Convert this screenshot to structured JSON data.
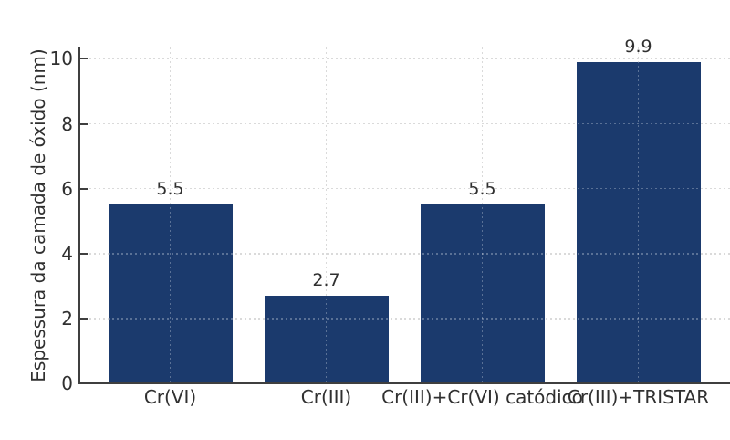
{
  "chart_data": {
    "type": "bar",
    "categories": [
      "Cr(VI)",
      "Cr(III)",
      "Cr(III)+Cr(VI) catódico",
      "Cr(III)+TRISTAR"
    ],
    "values": [
      5.5,
      2.7,
      5.5,
      9.9
    ],
    "bar_labels": [
      "5.5",
      "2.7",
      "5.5",
      "9.9"
    ],
    "title": "",
    "xlabel": "",
    "ylabel": "Espessura da camada de óxido (nm)",
    "yticks": [
      0,
      2,
      4,
      6,
      8,
      10
    ],
    "ytick_labels": [
      "0",
      "2",
      "4",
      "6",
      "8",
      "10"
    ],
    "ylim": [
      0,
      10.35
    ],
    "grid": true,
    "grid_style": "dotted",
    "legend_position": "none",
    "colors": {
      "bar": "#1b3a6d",
      "grid": "#cccccc",
      "spine": "#3f3f3f",
      "text": "#303030",
      "background": "#ffffff"
    }
  }
}
